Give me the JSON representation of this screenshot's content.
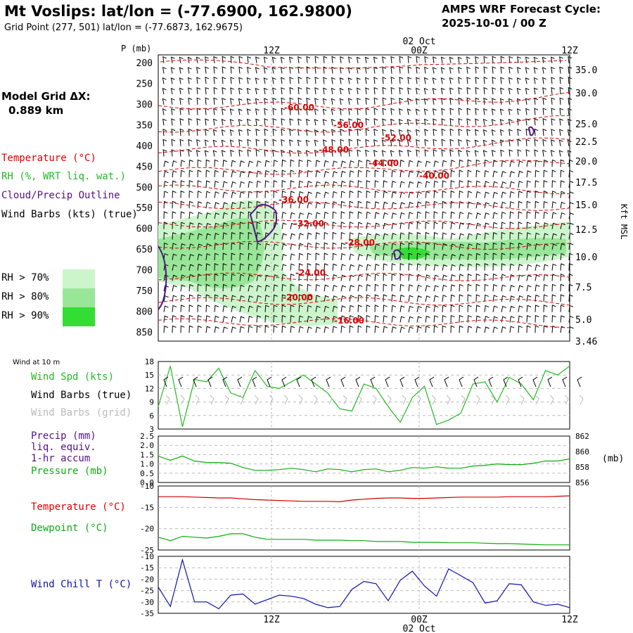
{
  "header": {
    "title": "Mt Voslips:  lat/lon = (-77.6900, 162.9800)",
    "subtitle": "Grid Point (277, 501) lat/lon = (-77.6873, 162.9675)",
    "cycle_label": "AMPS WRF Forecast Cycle:",
    "cycle_value": "2025-10-01 / 00  Z"
  },
  "left_labels": {
    "grid_title": "Model Grid ΔX:",
    "grid_value": "0.889 km",
    "temperature": "Temperature (°C)",
    "rh": "RH (%, WRT liq. wat.)",
    "cloud": "Cloud/Precip Outline",
    "wind": "Wind Barbs (kts) (true)",
    "rh70": "RH > 70%",
    "rh80": "RH > 80%",
    "rh90": "RH > 90%"
  },
  "colors": {
    "temperature": "#dd0000",
    "rh": "#22bb22",
    "cloud": "#551188",
    "rh70": "#ccf5cc",
    "rh80": "#99e699",
    "rh90": "#33dd33",
    "pressure": "#11aa11",
    "wind_chill": "#1111aa"
  },
  "time_axis": {
    "top_labels": [
      "12Z",
      "00Z",
      "12Z"
    ],
    "date_label": "02 Oct",
    "bottom_labels": [
      "12Z",
      "00Z",
      "12Z"
    ]
  },
  "chart_data": [
    {
      "type": "heatmap",
      "name": "upper_air_cross_section",
      "ylabel": "P (mb)",
      "y_ticks": [
        "200",
        "250",
        "300",
        "350",
        "400",
        "450",
        "500",
        "550",
        "600",
        "650",
        "700",
        "750",
        "800",
        "850"
      ],
      "right_axis_label": "Kft MSL",
      "right_ticks": [
        "35.0",
        "30.0",
        "25.0",
        "22.5",
        "20.0",
        "17.5",
        "15.0",
        "12.5",
        "10.0",
        "7.5",
        "5.0",
        "3.46"
      ],
      "temperature_contours": [
        "-60.00",
        "-56.00",
        "-52.00",
        "-48.00",
        "-44.00",
        "-40.00",
        "-36.00",
        "-32.00",
        "-28.00",
        "-24.00",
        "-20.00",
        "-16.00"
      ]
    },
    {
      "type": "line",
      "name": "wind_10m",
      "panel_label": "Wind at 10 m",
      "legend": [
        "Wind Spd (kts)",
        "Wind Barbs (true)",
        "Wind Barbs (grid)"
      ],
      "y_ticks": [
        "18",
        "15",
        "12",
        "9",
        "6",
        "3"
      ],
      "ylim": [
        3,
        18
      ],
      "values": [
        8,
        17,
        3.5,
        14,
        13.5,
        16.5,
        11,
        10,
        16,
        12.5,
        12,
        13.5,
        15,
        13,
        11,
        7.5,
        7,
        13,
        12,
        8,
        4.5,
        10,
        12.5,
        4,
        5,
        6.5,
        13,
        13.5,
        9,
        14.5,
        13,
        9.5,
        16,
        15,
        17
      ]
    },
    {
      "type": "line",
      "name": "precip_pressure",
      "legend": [
        "Precip (mm)",
        "liq. equiv.",
        "1-hr accum",
        "Pressure (mb)"
      ],
      "y_ticks_left": [
        "2.5",
        "2.0",
        "1.5",
        "1.0",
        "0.5",
        "0.0"
      ],
      "y_ticks_right": [
        "862",
        "860",
        "858",
        "856"
      ],
      "right_unit": "(mb)",
      "ylim": [
        855.5,
        862
      ],
      "values": [
        859.2,
        858.6,
        859.2,
        858.5,
        858.3,
        858.3,
        858.2,
        857.6,
        857.2,
        857.2,
        857.3,
        857.5,
        857.3,
        857.0,
        857.4,
        857.3,
        857.0,
        857.3,
        857.4,
        857.0,
        857.2,
        857.6,
        857.5,
        857.7,
        857.5,
        857.5,
        857.8,
        857.9,
        858.1,
        858.0,
        858.0,
        858.2,
        858.5,
        858.5,
        858.8
      ]
    },
    {
      "type": "line",
      "name": "temperature_dewpoint",
      "legend": [
        "Temperature (°C)",
        "Dewpoint (°C)"
      ],
      "y_ticks": [
        "-10",
        "-15",
        "-20",
        "-25"
      ],
      "ylim": [
        -25,
        -10
      ],
      "series": [
        {
          "name": "Temperature (°C)",
          "values": [
            -12.5,
            -12.5,
            -12.5,
            -12.6,
            -12.7,
            -12.8,
            -12.8,
            -13.0,
            -13.2,
            -13.3,
            -13.4,
            -13.5,
            -13.6,
            -13.6,
            -13.6,
            -13.7,
            -13.3,
            -13.1,
            -12.9,
            -12.8,
            -12.8,
            -12.9,
            -12.9,
            -12.8,
            -12.7,
            -12.6,
            -12.6,
            -12.6,
            -12.6,
            -12.5,
            -12.5,
            -12.5,
            -12.5,
            -12.4,
            -12.3
          ]
        },
        {
          "name": "Dewpoint (°C)",
          "values": [
            -22.0,
            -22.8,
            -21.8,
            -22.0,
            -22.2,
            -21.8,
            -21.2,
            -21.2,
            -22.0,
            -22.5,
            -22.5,
            -22.5,
            -22.5,
            -22.7,
            -22.7,
            -22.7,
            -22.8,
            -22.8,
            -23.0,
            -23.0,
            -23.0,
            -23.2,
            -23.2,
            -23.2,
            -23.3,
            -23.3,
            -23.3,
            -23.4,
            -23.5,
            -23.5,
            -23.6,
            -23.7,
            -23.8,
            -23.8,
            -23.8
          ]
        }
      ]
    },
    {
      "type": "line",
      "name": "wind_chill",
      "legend": [
        "Wind Chill T (°C)"
      ],
      "y_ticks": [
        "-10",
        "-15",
        "-20",
        "-25",
        "-30",
        "-35"
      ],
      "ylim": [
        -35,
        -10
      ],
      "values": [
        -23.5,
        -32,
        -11.5,
        -30,
        -30,
        -33,
        -27,
        -26.5,
        -31,
        -29,
        -27,
        -27.5,
        -28.5,
        -31,
        -32.5,
        -32,
        -24.5,
        -21,
        -22,
        -29.5,
        -20.5,
        -16.5,
        -23,
        -27.5,
        -15.5,
        -18.5,
        -21.5,
        -30.5,
        -29.5,
        -22,
        -22.5,
        -30,
        -31.5,
        -31,
        -32.5
      ]
    }
  ]
}
